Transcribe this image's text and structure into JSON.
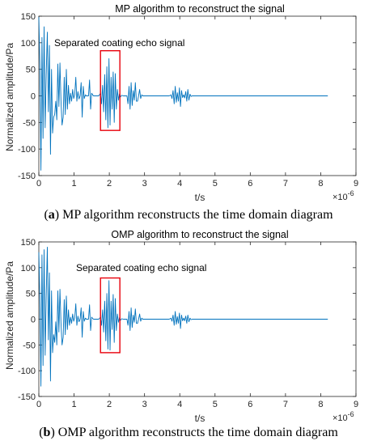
{
  "panels": [
    {
      "caption_letter": "a",
      "caption_text": " MP algorithm reconstructs the time domain diagram",
      "annotation": "Separated coating echo signal"
    },
    {
      "caption_letter": "b",
      "caption_text": " OMP algorithm reconstructs the time domain diagram",
      "annotation": "Separated coating echo signal"
    }
  ],
  "chart_data": [
    {
      "type": "line",
      "title": "MP algorithm to reconstruct the signal",
      "xlabel": "t/s",
      "ylabel": "Normalized amplitude/Pa",
      "x_exponent_label": "×10",
      "x_exponent": "-6",
      "xlim": [
        0,
        9
      ],
      "ylim": [
        -150,
        150
      ],
      "xticks": [
        0,
        1,
        2,
        3,
        4,
        5,
        6,
        7,
        8,
        9
      ],
      "yticks": [
        150,
        100,
        50,
        0,
        -50,
        -100,
        -150
      ],
      "line_color": "#0072bd",
      "highlight_box": {
        "x": [
          1.75,
          2.3
        ],
        "y": [
          -65,
          85
        ],
        "color": "#e8000b"
      },
      "series": [
        {
          "x": [
            0.0,
            0.03,
            0.06,
            0.09,
            0.12,
            0.15,
            0.18,
            0.21,
            0.24,
            0.27,
            0.3,
            0.33,
            0.36,
            0.39,
            0.42,
            0.45,
            0.48,
            0.51,
            0.54,
            0.57,
            0.6,
            0.63,
            0.66,
            0.69,
            0.72,
            0.75,
            0.78,
            0.81,
            0.84,
            0.87,
            0.9,
            0.93,
            0.96,
            0.99,
            1.02,
            1.05,
            1.08,
            1.11,
            1.14,
            1.17,
            1.2,
            1.23,
            1.26,
            1.29,
            1.32,
            1.35,
            1.38,
            1.41,
            1.44,
            1.47,
            1.5,
            1.55,
            1.6,
            1.65,
            1.7,
            1.75,
            1.78,
            1.81,
            1.84,
            1.87,
            1.9,
            1.93,
            1.96,
            1.99,
            2.02,
            2.05,
            2.08,
            2.11,
            2.14,
            2.17,
            2.2,
            2.23,
            2.26,
            2.29,
            2.32,
            2.35,
            2.4,
            2.45,
            2.5,
            2.53,
            2.56,
            2.59,
            2.62,
            2.65,
            2.68,
            2.71,
            2.74,
            2.77,
            2.8,
            2.83,
            2.86,
            2.89,
            2.92,
            2.95,
            3.0,
            3.1,
            3.2,
            3.3,
            3.4,
            3.5,
            3.6,
            3.7,
            3.75,
            3.78,
            3.81,
            3.84,
            3.87,
            3.9,
            3.93,
            3.96,
            3.99,
            4.02,
            4.05,
            4.08,
            4.11,
            4.14,
            4.17,
            4.2,
            4.23,
            4.26,
            4.29,
            4.32,
            4.35,
            4.4,
            4.5,
            5.0,
            6.0,
            7.0,
            8.0,
            8.2
          ],
          "y": [
            148,
            60,
            -140,
            110,
            -80,
            130,
            -60,
            40,
            120,
            -30,
            95,
            -110,
            50,
            -70,
            -40,
            -35,
            -10,
            -45,
            60,
            -20,
            62,
            -10,
            -55,
            -40,
            35,
            -35,
            50,
            -25,
            20,
            -15,
            5,
            -10,
            12,
            -5,
            3,
            35,
            -10,
            8,
            -6,
            0,
            25,
            -40,
            18,
            -5,
            2,
            0,
            0,
            0,
            30,
            -25,
            5,
            0,
            0,
            0,
            0,
            5,
            -15,
            20,
            -30,
            40,
            -45,
            55,
            -60,
            70,
            -55,
            35,
            -25,
            45,
            -50,
            42,
            -25,
            12,
            -8,
            4,
            -2,
            1,
            0,
            0,
            0,
            -15,
            18,
            -25,
            25,
            -18,
            10,
            -8,
            25,
            -10,
            -10,
            0,
            12,
            -5,
            2,
            0,
            0,
            0,
            0,
            0,
            0,
            0,
            0,
            0,
            2,
            -5,
            10,
            -15,
            18,
            -12,
            6,
            -10,
            15,
            -20,
            10,
            -3,
            2,
            -4,
            8,
            -10,
            12,
            -8,
            3,
            -1,
            0,
            0,
            0,
            0,
            0,
            0,
            0,
            0
          ]
        }
      ]
    },
    {
      "type": "line",
      "title": "OMP algorithm to reconstruct the signal",
      "xlabel": "t/s",
      "ylabel": "Normalized amplitude/Pa",
      "x_exponent_label": "×10",
      "x_exponent": "-6",
      "xlim": [
        0,
        9
      ],
      "ylim": [
        -150,
        150
      ],
      "xticks": [
        0,
        1,
        2,
        3,
        4,
        5,
        6,
        7,
        8,
        9
      ],
      "yticks": [
        150,
        100,
        50,
        0,
        -50,
        -100,
        -150
      ],
      "line_color": "#0072bd",
      "highlight_box": {
        "x": [
          1.75,
          2.3
        ],
        "y": [
          -65,
          80
        ],
        "color": "#e8000b"
      },
      "series": [
        {
          "x": [
            0.0,
            0.03,
            0.06,
            0.09,
            0.12,
            0.15,
            0.18,
            0.21,
            0.24,
            0.27,
            0.3,
            0.33,
            0.36,
            0.39,
            0.42,
            0.45,
            0.48,
            0.51,
            0.54,
            0.57,
            0.6,
            0.63,
            0.66,
            0.69,
            0.72,
            0.75,
            0.78,
            0.81,
            0.84,
            0.87,
            0.9,
            0.93,
            0.96,
            0.99,
            1.02,
            1.05,
            1.08,
            1.11,
            1.14,
            1.17,
            1.2,
            1.23,
            1.26,
            1.29,
            1.32,
            1.35,
            1.38,
            1.41,
            1.44,
            1.47,
            1.5,
            1.55,
            1.6,
            1.65,
            1.7,
            1.75,
            1.78,
            1.81,
            1.84,
            1.87,
            1.9,
            1.93,
            1.96,
            1.99,
            2.02,
            2.05,
            2.08,
            2.11,
            2.14,
            2.17,
            2.2,
            2.23,
            2.26,
            2.29,
            2.32,
            2.35,
            2.4,
            2.45,
            2.5,
            2.53,
            2.56,
            2.59,
            2.62,
            2.65,
            2.68,
            2.71,
            2.74,
            2.77,
            2.8,
            2.83,
            2.86,
            2.89,
            2.92,
            2.95,
            3.0,
            3.1,
            3.2,
            3.3,
            3.4,
            3.5,
            3.6,
            3.7,
            3.75,
            3.78,
            3.81,
            3.84,
            3.87,
            3.9,
            3.93,
            3.96,
            3.99,
            4.02,
            4.05,
            4.08,
            4.11,
            4.14,
            4.17,
            4.2,
            4.23,
            4.26,
            4.29,
            4.32,
            4.35,
            4.4,
            4.5,
            5.0,
            6.0,
            7.0,
            8.0,
            8.2
          ],
          "y": [
            130,
            40,
            -130,
            125,
            -90,
            135,
            -70,
            45,
            140,
            -40,
            90,
            -120,
            55,
            -65,
            -30,
            -45,
            -5,
            -50,
            55,
            -25,
            58,
            -8,
            -50,
            -35,
            38,
            -30,
            45,
            -20,
            18,
            -12,
            4,
            -8,
            10,
            -4,
            3,
            30,
            -12,
            6,
            -5,
            0,
            22,
            -35,
            15,
            -4,
            2,
            0,
            0,
            0,
            28,
            -22,
            4,
            0,
            0,
            0,
            0,
            4,
            -12,
            18,
            -25,
            35,
            -42,
            50,
            -58,
            75,
            -60,
            35,
            -20,
            48,
            -45,
            40,
            -22,
            10,
            -6,
            3,
            -2,
            1,
            0,
            0,
            0,
            -12,
            15,
            -22,
            22,
            -16,
            8,
            -6,
            20,
            -8,
            -8,
            0,
            10,
            -4,
            2,
            0,
            0,
            0,
            0,
            0,
            0,
            0,
            0,
            0,
            2,
            -4,
            8,
            -12,
            15,
            -10,
            5,
            -8,
            12,
            -18,
            8,
            -3,
            2,
            -3,
            6,
            -8,
            8,
            -5,
            2,
            -1,
            0,
            0,
            0,
            0,
            0,
            0,
            0,
            0
          ]
        }
      ]
    }
  ]
}
